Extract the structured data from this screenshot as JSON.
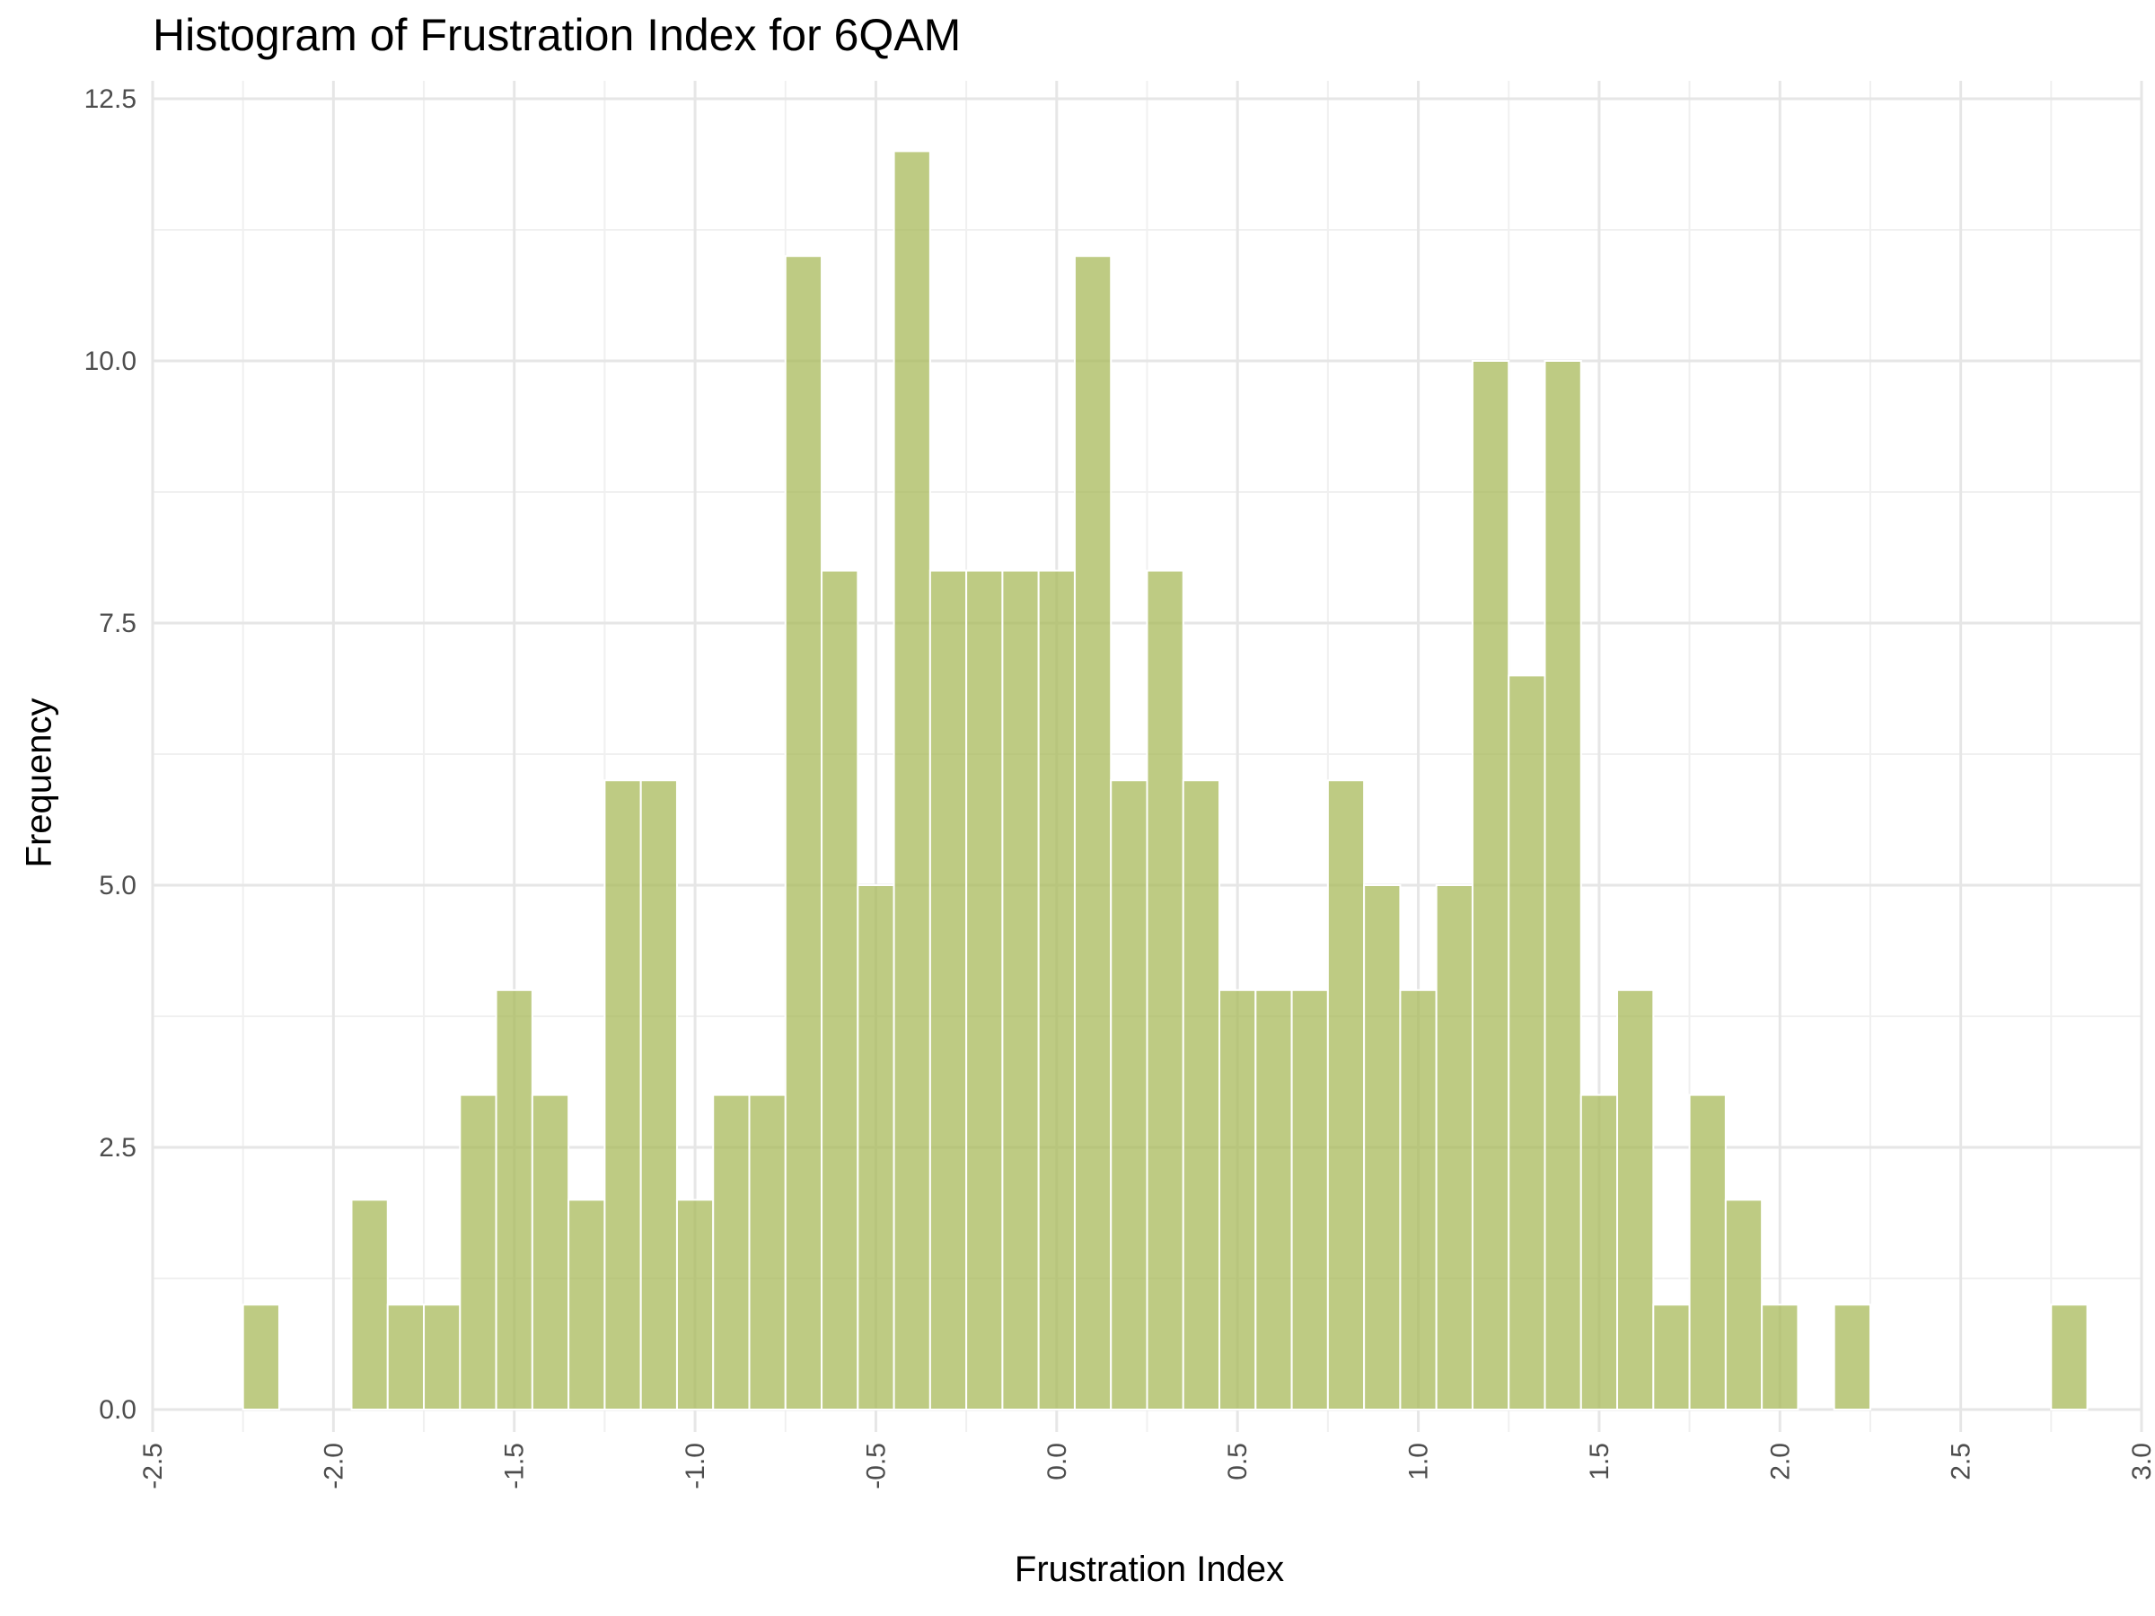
{
  "chart_data": {
    "type": "bar",
    "title": "Histogram of Frustration Index for 6QAM",
    "xlabel": "Frustration Index",
    "ylabel": "Frequency",
    "bin_width": 0.1,
    "bins": [
      {
        "x": -2.2,
        "count": 1
      },
      {
        "x": -2.1,
        "count": 0
      },
      {
        "x": -2.0,
        "count": 0
      },
      {
        "x": -1.9,
        "count": 2
      },
      {
        "x": -1.8,
        "count": 1
      },
      {
        "x": -1.7,
        "count": 1
      },
      {
        "x": -1.6,
        "count": 3
      },
      {
        "x": -1.5,
        "count": 4
      },
      {
        "x": -1.4,
        "count": 3
      },
      {
        "x": -1.3,
        "count": 2
      },
      {
        "x": -1.2,
        "count": 6
      },
      {
        "x": -1.1,
        "count": 6
      },
      {
        "x": -1.0,
        "count": 2
      },
      {
        "x": -0.9,
        "count": 3
      },
      {
        "x": -0.8,
        "count": 3
      },
      {
        "x": -0.7,
        "count": 11
      },
      {
        "x": -0.6,
        "count": 8
      },
      {
        "x": -0.5,
        "count": 5
      },
      {
        "x": -0.4,
        "count": 12
      },
      {
        "x": -0.3,
        "count": 8
      },
      {
        "x": -0.2,
        "count": 8
      },
      {
        "x": -0.1,
        "count": 8
      },
      {
        "x": 0.0,
        "count": 8
      },
      {
        "x": 0.1,
        "count": 11
      },
      {
        "x": 0.2,
        "count": 6
      },
      {
        "x": 0.3,
        "count": 8
      },
      {
        "x": 0.4,
        "count": 6
      },
      {
        "x": 0.5,
        "count": 4
      },
      {
        "x": 0.6,
        "count": 4
      },
      {
        "x": 0.7,
        "count": 4
      },
      {
        "x": 0.8,
        "count": 6
      },
      {
        "x": 0.9,
        "count": 5
      },
      {
        "x": 1.0,
        "count": 4
      },
      {
        "x": 1.1,
        "count": 5
      },
      {
        "x": 1.2,
        "count": 10
      },
      {
        "x": 1.3,
        "count": 7
      },
      {
        "x": 1.4,
        "count": 10
      },
      {
        "x": 1.5,
        "count": 3
      },
      {
        "x": 1.6,
        "count": 4
      },
      {
        "x": 1.7,
        "count": 1
      },
      {
        "x": 1.8,
        "count": 3
      },
      {
        "x": 1.9,
        "count": 2
      },
      {
        "x": 2.0,
        "count": 1
      },
      {
        "x": 2.1,
        "count": 0
      },
      {
        "x": 2.2,
        "count": 1
      },
      {
        "x": 2.3,
        "count": 0
      },
      {
        "x": 2.4,
        "count": 0
      },
      {
        "x": 2.5,
        "count": 0
      },
      {
        "x": 2.6,
        "count": 0
      },
      {
        "x": 2.7,
        "count": 0
      },
      {
        "x": 2.8,
        "count": 1
      }
    ],
    "xlim": [
      -2.5,
      3.0
    ],
    "ylim": [
      0,
      12.5
    ],
    "x_ticks": [
      "-2.5",
      "-2.0",
      "-1.5",
      "-1.0",
      "-0.5",
      "0.0",
      "0.5",
      "1.0",
      "1.5",
      "2.0",
      "2.5",
      "3.0"
    ],
    "x_tick_values": [
      -2.5,
      -2.0,
      -1.5,
      -1.0,
      -0.5,
      0.0,
      0.5,
      1.0,
      1.5,
      2.0,
      2.5,
      3.0
    ],
    "y_ticks": [
      "0.0",
      "2.5",
      "5.0",
      "7.5",
      "10.0",
      "12.5"
    ],
    "y_tick_values": [
      0,
      2.5,
      5.0,
      7.5,
      10.0,
      12.5
    ],
    "grid": true,
    "bar_color": "#a8b95a",
    "bar_opacity": 0.75,
    "bar_outline": "#ffffff",
    "x_tick_rotation": "vertical"
  }
}
